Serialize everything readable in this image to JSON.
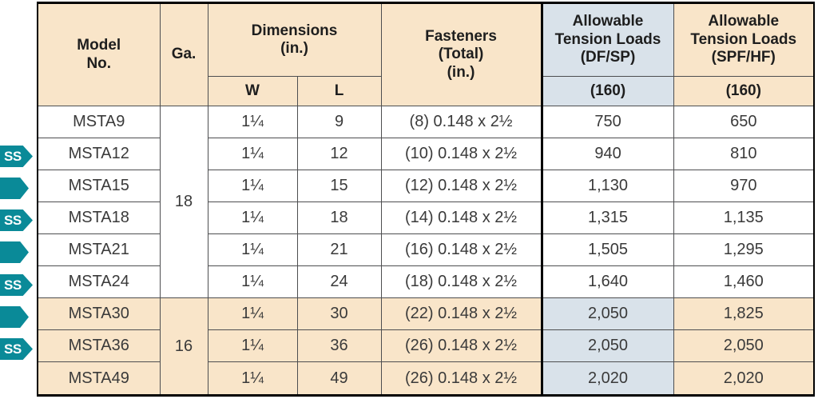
{
  "colors": {
    "header_tan": "#f9e5c9",
    "header_blue": "#d9e2ea",
    "badge_teal": "#0a8a98",
    "grid_line": "#4d4e50",
    "frame": "#000000"
  },
  "badges": {
    "ss_label": "SS",
    "items": [
      {
        "row": 1,
        "type": "ss"
      },
      {
        "row": 2,
        "type": "arrow"
      },
      {
        "row": 3,
        "type": "ss"
      },
      {
        "row": 4,
        "type": "arrow"
      },
      {
        "row": 5,
        "type": "ss"
      },
      {
        "row": 6,
        "type": "arrow"
      },
      {
        "row": 7,
        "type": "ss"
      }
    ]
  },
  "table": {
    "headers": {
      "model_1": "Model",
      "model_2": "No.",
      "ga": "Ga.",
      "dimensions_1": "Dimensions",
      "dimensions_2": "(in.)",
      "w": "W",
      "l": "L",
      "fasteners_1": "Fasteners",
      "fasteners_2": "(Total)",
      "fasteners_3": "(in.)",
      "df_1": "Allowable",
      "df_2": "Tension Loads",
      "df_3": "(DF/SP)",
      "df_rate": "(160)",
      "spf_1": "Allowable",
      "spf_2": "Tension Loads",
      "spf_3": "(SPF/HF)",
      "spf_rate": "(160)"
    },
    "gauges": [
      {
        "value": "18",
        "rows": 6
      },
      {
        "value": "16",
        "rows": 3
      }
    ],
    "rows": [
      {
        "model": "MSTA9",
        "w": "1¼",
        "l": "9",
        "fasteners": "(8) 0.148 x 2½",
        "df": "750",
        "spf": "650"
      },
      {
        "model": "MSTA12",
        "w": "1¼",
        "l": "12",
        "fasteners": "(10) 0.148 x 2½",
        "df": "940",
        "spf": "810"
      },
      {
        "model": "MSTA15",
        "w": "1¼",
        "l": "15",
        "fasteners": "(12) 0.148 x 2½",
        "df": "1,130",
        "spf": "970"
      },
      {
        "model": "MSTA18",
        "w": "1¼",
        "l": "18",
        "fasteners": "(14) 0.148 x 2½",
        "df": "1,315",
        "spf": "1,135"
      },
      {
        "model": "MSTA21",
        "w": "1¼",
        "l": "21",
        "fasteners": "(16) 0.148 x 2½",
        "df": "1,505",
        "spf": "1,295"
      },
      {
        "model": "MSTA24",
        "w": "1¼",
        "l": "24",
        "fasteners": "(18) 0.148 x 2½",
        "df": "1,640",
        "spf": "1,460"
      },
      {
        "model": "MSTA30",
        "w": "1¼",
        "l": "30",
        "fasteners": "(22) 0.148 x 2½",
        "df": "2,050",
        "spf": "1,825"
      },
      {
        "model": "MSTA36",
        "w": "1¼",
        "l": "36",
        "fasteners": "(26) 0.148 x 2½",
        "df": "2,050",
        "spf": "2,050"
      },
      {
        "model": "MSTA49",
        "w": "1¼",
        "l": "49",
        "fasteners": "(26) 0.148 x 2½",
        "df": "2,020",
        "spf": "2,020"
      }
    ]
  }
}
